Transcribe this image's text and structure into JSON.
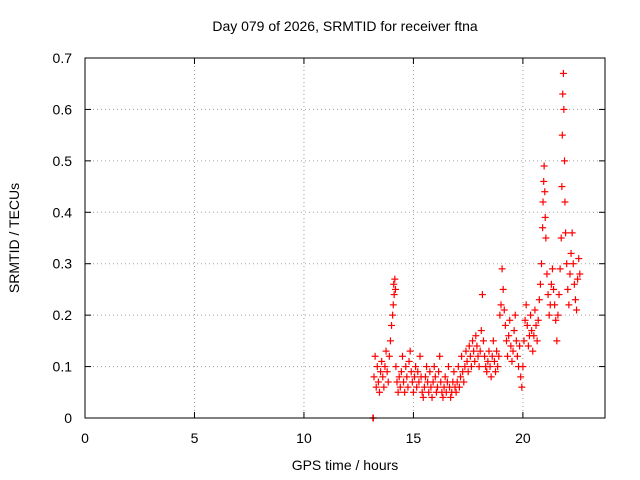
{
  "chart_data": {
    "type": "scatter",
    "title": "Day 079 of 2026, SRMTID for receiver ftna",
    "xlabel": "GPS time / hours",
    "ylabel": "SRMTID / TECUs",
    "xlim": [
      0,
      23.75
    ],
    "ylim": [
      0,
      0.7
    ],
    "xticks": [
      0,
      5,
      10,
      15,
      20
    ],
    "yticks": [
      0,
      0.1,
      0.2,
      0.3,
      0.4,
      0.5,
      0.6,
      0.7
    ],
    "xtick_labels": [
      "0",
      "5",
      "10",
      "15",
      "20"
    ],
    "ytick_labels": [
      "0",
      "0.1",
      "0.2",
      "0.3",
      "0.4",
      "0.5",
      "0.6",
      "0.7"
    ],
    "grid": true,
    "marker": "+",
    "marker_color": "#ff0000",
    "series": [
      {
        "name": "SRMTID",
        "points": [
          [
            13.15,
            0.0
          ],
          [
            13.17,
            0.0
          ],
          [
            13.2,
            0.08
          ],
          [
            13.25,
            0.12
          ],
          [
            13.3,
            0.06
          ],
          [
            13.35,
            0.1
          ],
          [
            13.4,
            0.07
          ],
          [
            13.45,
            0.05
          ],
          [
            13.5,
            0.09
          ],
          [
            13.55,
            0.11
          ],
          [
            13.6,
            0.08
          ],
          [
            13.65,
            0.06
          ],
          [
            13.7,
            0.1
          ],
          [
            13.75,
            0.13
          ],
          [
            13.8,
            0.09
          ],
          [
            13.85,
            0.07
          ],
          [
            13.9,
            0.12
          ],
          [
            13.95,
            0.15
          ],
          [
            14.0,
            0.18
          ],
          [
            14.05,
            0.2
          ],
          [
            14.08,
            0.22
          ],
          [
            14.1,
            0.26
          ],
          [
            14.12,
            0.24
          ],
          [
            14.15,
            0.27
          ],
          [
            14.18,
            0.25
          ],
          [
            14.2,
            0.1
          ],
          [
            14.25,
            0.07
          ],
          [
            14.3,
            0.05
          ],
          [
            14.35,
            0.08
          ],
          [
            14.4,
            0.06
          ],
          [
            14.45,
            0.09
          ],
          [
            14.5,
            0.12
          ],
          [
            14.55,
            0.07
          ],
          [
            14.6,
            0.05
          ],
          [
            14.65,
            0.1
          ],
          [
            14.7,
            0.08
          ],
          [
            14.75,
            0.06
          ],
          [
            14.8,
            0.11
          ],
          [
            14.85,
            0.13
          ],
          [
            14.9,
            0.09
          ],
          [
            14.95,
            0.07
          ],
          [
            15.0,
            0.05
          ],
          [
            15.05,
            0.08
          ],
          [
            15.1,
            0.1
          ],
          [
            15.15,
            0.06
          ],
          [
            15.2,
            0.09
          ],
          [
            15.25,
            0.07
          ],
          [
            15.3,
            0.12
          ],
          [
            15.35,
            0.08
          ],
          [
            15.4,
            0.05
          ],
          [
            15.45,
            0.04
          ],
          [
            15.5,
            0.06
          ],
          [
            15.55,
            0.08
          ],
          [
            15.6,
            0.1
          ],
          [
            15.65,
            0.07
          ],
          [
            15.7,
            0.05
          ],
          [
            15.75,
            0.09
          ],
          [
            15.8,
            0.06
          ],
          [
            15.85,
            0.04
          ],
          [
            15.9,
            0.07
          ],
          [
            15.95,
            0.1
          ],
          [
            16.0,
            0.08
          ],
          [
            16.05,
            0.05
          ],
          [
            16.1,
            0.06
          ],
          [
            16.15,
            0.09
          ],
          [
            16.2,
            0.12
          ],
          [
            16.25,
            0.07
          ],
          [
            16.3,
            0.05
          ],
          [
            16.35,
            0.04
          ],
          [
            16.4,
            0.06
          ],
          [
            16.45,
            0.08
          ],
          [
            16.5,
            0.05
          ],
          [
            16.55,
            0.07
          ],
          [
            16.6,
            0.1
          ],
          [
            16.65,
            0.06
          ],
          [
            16.7,
            0.04
          ],
          [
            16.75,
            0.05
          ],
          [
            16.8,
            0.07
          ],
          [
            16.85,
            0.09
          ],
          [
            16.9,
            0.06
          ],
          [
            16.95,
            0.05
          ],
          [
            17.0,
            0.07
          ],
          [
            17.05,
            0.1
          ],
          [
            17.1,
            0.06
          ],
          [
            17.15,
            0.08
          ],
          [
            17.2,
            0.12
          ],
          [
            17.25,
            0.09
          ],
          [
            17.3,
            0.07
          ],
          [
            17.35,
            0.1
          ],
          [
            17.4,
            0.13
          ],
          [
            17.45,
            0.11
          ],
          [
            17.5,
            0.09
          ],
          [
            17.55,
            0.14
          ],
          [
            17.6,
            0.12
          ],
          [
            17.65,
            0.1
          ],
          [
            17.7,
            0.15
          ],
          [
            17.75,
            0.13
          ],
          [
            17.8,
            0.11
          ],
          [
            17.85,
            0.16
          ],
          [
            17.9,
            0.14
          ],
          [
            17.95,
            0.12
          ],
          [
            18.0,
            0.1
          ],
          [
            18.05,
            0.13
          ],
          [
            18.1,
            0.17
          ],
          [
            18.15,
            0.24
          ],
          [
            18.2,
            0.15
          ],
          [
            18.25,
            0.12
          ],
          [
            18.3,
            0.1
          ],
          [
            18.35,
            0.09
          ],
          [
            18.4,
            0.11
          ],
          [
            18.45,
            0.13
          ],
          [
            18.5,
            0.1
          ],
          [
            18.55,
            0.08
          ],
          [
            18.6,
            0.12
          ],
          [
            18.65,
            0.15
          ],
          [
            18.7,
            0.11
          ],
          [
            18.75,
            0.09
          ],
          [
            18.8,
            0.13
          ],
          [
            18.85,
            0.1
          ],
          [
            18.9,
            0.12
          ],
          [
            18.95,
            0.2
          ],
          [
            19.0,
            0.22
          ],
          [
            19.05,
            0.29
          ],
          [
            19.1,
            0.25
          ],
          [
            19.15,
            0.21
          ],
          [
            19.2,
            0.18
          ],
          [
            19.25,
            0.15
          ],
          [
            19.3,
            0.12
          ],
          [
            19.35,
            0.16
          ],
          [
            19.4,
            0.19
          ],
          [
            19.45,
            0.14
          ],
          [
            19.5,
            0.11
          ],
          [
            19.55,
            0.13
          ],
          [
            19.6,
            0.17
          ],
          [
            19.65,
            0.2
          ],
          [
            19.7,
            0.15
          ],
          [
            19.75,
            0.12
          ],
          [
            19.8,
            0.1
          ],
          [
            19.85,
            0.14
          ],
          [
            19.9,
            0.08
          ],
          [
            19.95,
            0.06
          ],
          [
            20.0,
            0.1
          ],
          [
            20.05,
            0.15
          ],
          [
            20.1,
            0.19
          ],
          [
            20.15,
            0.22
          ],
          [
            20.2,
            0.18
          ],
          [
            20.25,
            0.14
          ],
          [
            20.3,
            0.16
          ],
          [
            20.35,
            0.2
          ],
          [
            20.4,
            0.17
          ],
          [
            20.45,
            0.13
          ],
          [
            20.5,
            0.16
          ],
          [
            20.55,
            0.21
          ],
          [
            20.6,
            0.18
          ],
          [
            20.65,
            0.15
          ],
          [
            20.7,
            0.19
          ],
          [
            20.75,
            0.23
          ],
          [
            20.8,
            0.26
          ],
          [
            20.85,
            0.3
          ],
          [
            20.9,
            0.37
          ],
          [
            20.92,
            0.42
          ],
          [
            20.95,
            0.46
          ],
          [
            20.97,
            0.49
          ],
          [
            21.0,
            0.44
          ],
          [
            21.02,
            0.39
          ],
          [
            21.05,
            0.35
          ],
          [
            21.1,
            0.28
          ],
          [
            21.15,
            0.24
          ],
          [
            21.2,
            0.2
          ],
          [
            21.25,
            0.22
          ],
          [
            21.3,
            0.26
          ],
          [
            21.35,
            0.29
          ],
          [
            21.4,
            0.25
          ],
          [
            21.45,
            0.22
          ],
          [
            21.5,
            0.19
          ],
          [
            21.55,
            0.15
          ],
          [
            21.6,
            0.2
          ],
          [
            21.65,
            0.24
          ],
          [
            21.7,
            0.29
          ],
          [
            21.75,
            0.35
          ],
          [
            21.78,
            0.45
          ],
          [
            21.8,
            0.55
          ],
          [
            21.82,
            0.63
          ],
          [
            21.85,
            0.67
          ],
          [
            21.87,
            0.6
          ],
          [
            21.9,
            0.5
          ],
          [
            21.92,
            0.42
          ],
          [
            21.95,
            0.36
          ],
          [
            22.0,
            0.3
          ],
          [
            22.05,
            0.25
          ],
          [
            22.1,
            0.22
          ],
          [
            22.15,
            0.28
          ],
          [
            22.2,
            0.32
          ],
          [
            22.25,
            0.36
          ],
          [
            22.3,
            0.3
          ],
          [
            22.35,
            0.26
          ],
          [
            22.4,
            0.23
          ],
          [
            22.45,
            0.21
          ],
          [
            22.5,
            0.27
          ],
          [
            22.55,
            0.31
          ],
          [
            22.6,
            0.28
          ]
        ]
      }
    ]
  }
}
